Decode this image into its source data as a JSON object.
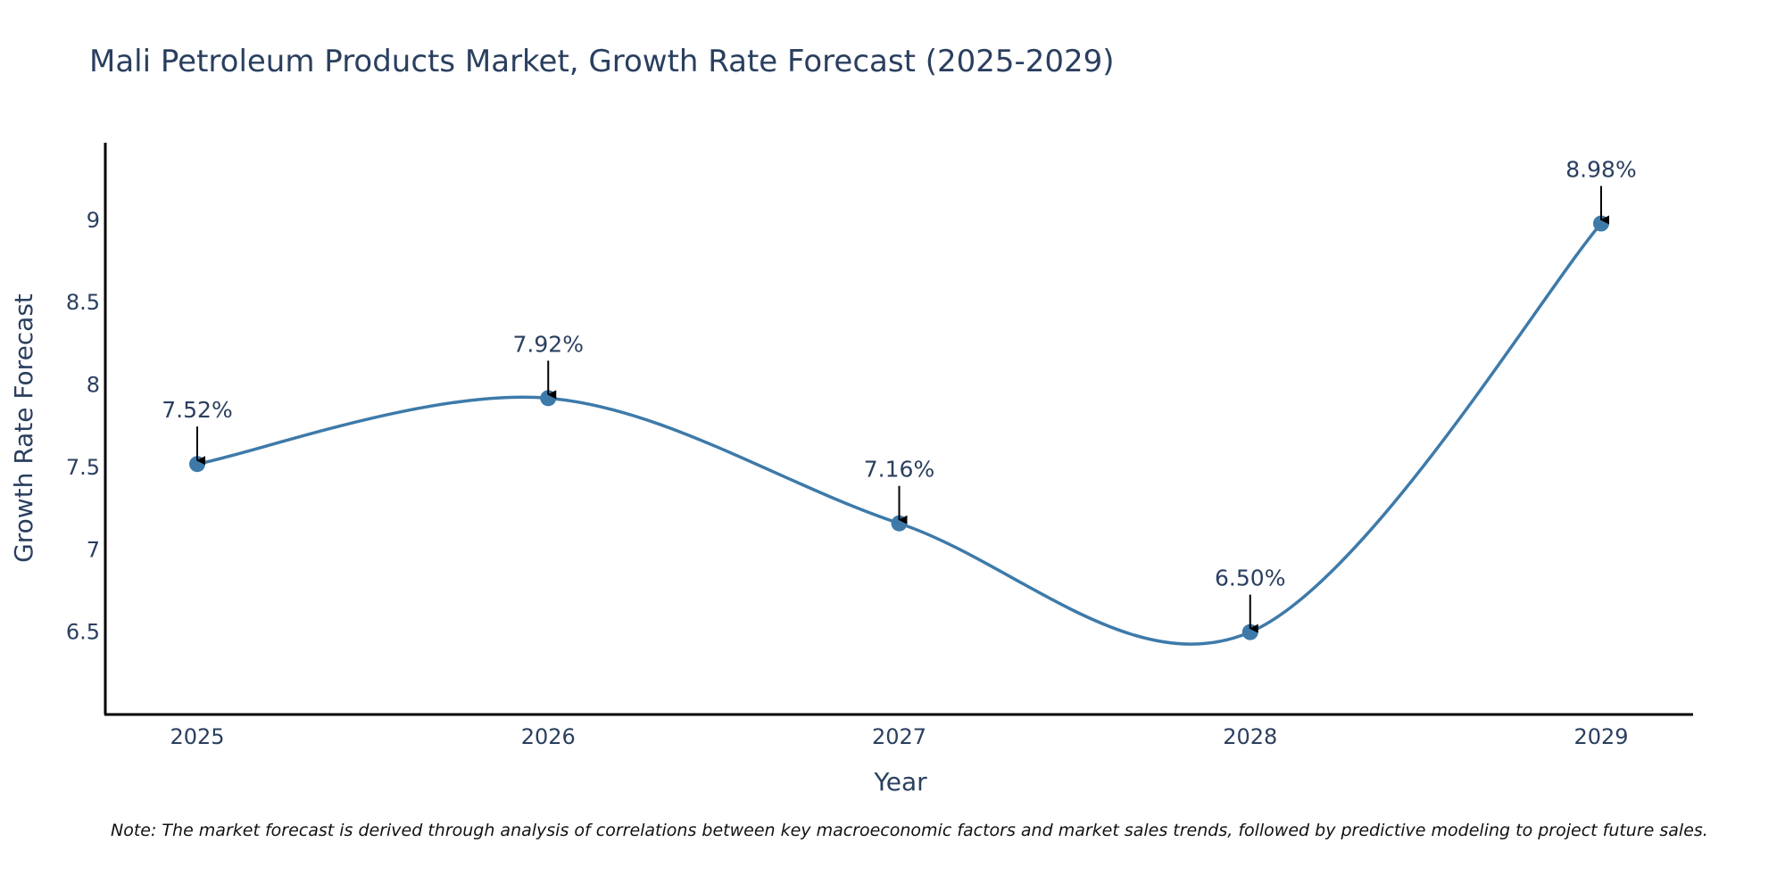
{
  "chart_data": {
    "type": "line",
    "title": "Mali Petroleum Products Market, Growth Rate Forecast (2025-2029)",
    "xlabel": "Year",
    "ylabel": "Growth Rate Forecast",
    "categories": [
      "2025",
      "2026",
      "2027",
      "2028",
      "2029"
    ],
    "values": [
      7.52,
      7.92,
      7.16,
      6.5,
      8.98
    ],
    "data_labels": [
      "7.52%",
      "7.92%",
      "7.16%",
      "6.50%",
      "8.98%"
    ],
    "y_ticks": [
      6.5,
      7,
      7.5,
      8,
      8.5,
      9
    ],
    "y_tick_labels": [
      "6.5",
      "7",
      "7.5",
      "8",
      "8.5",
      "9"
    ],
    "ylim": [
      6.0,
      9.47
    ],
    "line_color": "#3d7aa9",
    "grid": false,
    "note": "Note: The market forecast is derived through analysis of correlations between key macroeconomic factors and market sales trends, followed by predictive modeling to project future sales."
  }
}
